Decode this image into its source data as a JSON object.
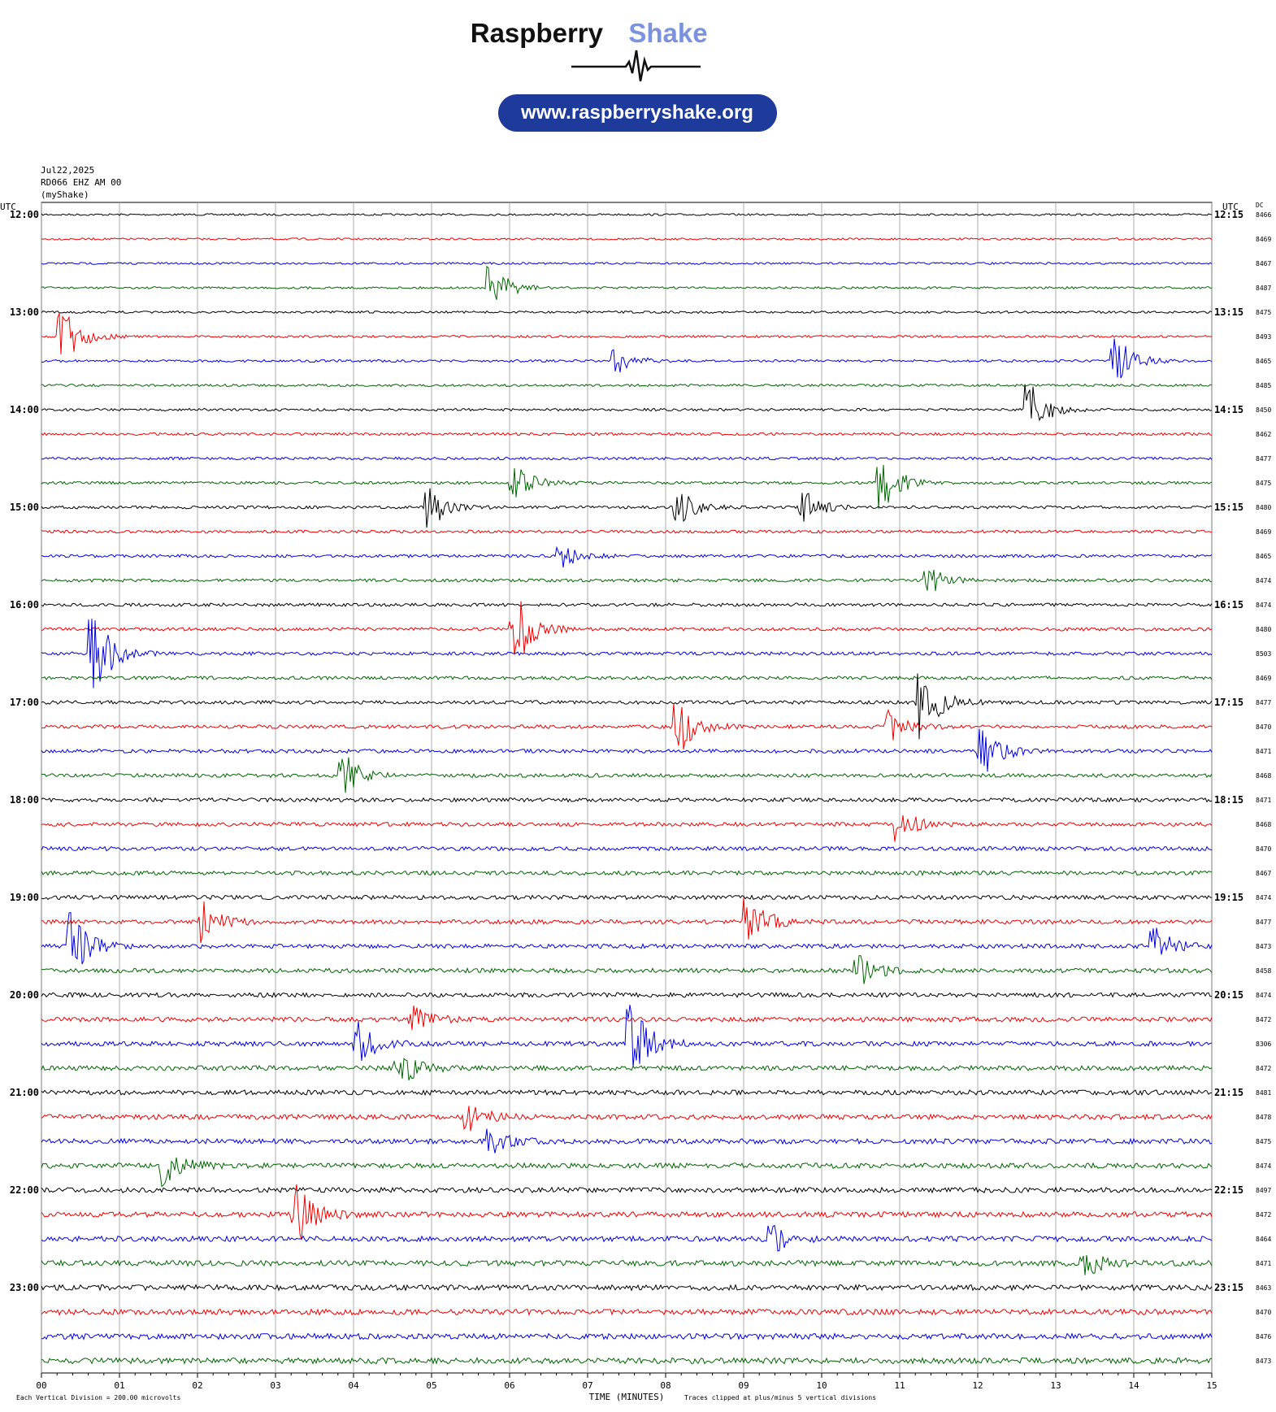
{
  "header": {
    "brand_left": "Raspberry",
    "brand_right": "Shake",
    "url": "www.raspberryshake.org"
  },
  "info": {
    "date": "Jul22,2025",
    "station": "RD066 EHZ AM 00",
    "network": "(myShake)"
  },
  "left_axis": {
    "title": "UTC",
    "labels": [
      "12:00",
      "13:00",
      "14:00",
      "15:00",
      "16:00",
      "17:00",
      "18:00",
      "19:00",
      "20:00",
      "21:00",
      "22:00",
      "23:00"
    ]
  },
  "right_axis": {
    "title": "UTC",
    "labels": [
      "12:15",
      "13:15",
      "14:15",
      "15:15",
      "16:15",
      "17:15",
      "18:15",
      "19:15",
      "20:15",
      "21:15",
      "22:15",
      "23:15"
    ]
  },
  "dc": {
    "title": "DC",
    "values": [
      8466,
      8469,
      8467,
      8487,
      8475,
      8493,
      8465,
      8485,
      8450,
      8462,
      8477,
      8475,
      8480,
      8469,
      8465,
      8474,
      8474,
      8480,
      8503,
      8469,
      8477,
      8470,
      8471,
      8468,
      8471,
      8468,
      8470,
      8467,
      8474,
      8477,
      8473,
      8458,
      8474,
      8472,
      8306,
      8472,
      8481,
      8478,
      8475,
      8474,
      8497,
      8472,
      8464,
      8471,
      8463,
      8470,
      8476,
      8473
    ]
  },
  "x_axis": {
    "title": "TIME (MINUTES)",
    "ticks": [
      "00",
      "01",
      "02",
      "03",
      "04",
      "05",
      "06",
      "07",
      "08",
      "09",
      "10",
      "11",
      "12",
      "13",
      "14",
      "15"
    ]
  },
  "footer": {
    "scale_note": "Each Vertical Division =  200.00 microvolts",
    "clip_note": "Traces clipped at plus/minus 5 vertical divisions"
  }
}
